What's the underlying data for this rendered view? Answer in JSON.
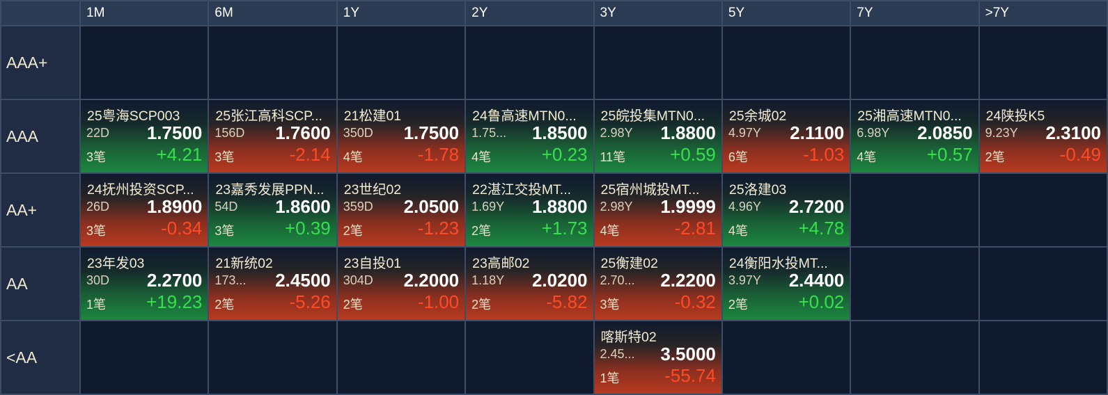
{
  "columns": [
    "1M",
    "6M",
    "1Y",
    "2Y",
    "3Y",
    "5Y",
    "7Y",
    ">7Y"
  ],
  "rows": [
    {
      "label": "AAA+",
      "cells": [
        null,
        null,
        null,
        null,
        null,
        null,
        null,
        null
      ]
    },
    {
      "label": "AAA",
      "cells": [
        {
          "name": "25粤海SCP003",
          "term": "22D",
          "yield": "1.7500",
          "trades": "3笔",
          "change": "+4.21",
          "direction": "up"
        },
        {
          "name": "25张江高科SCP...",
          "term": "156D",
          "yield": "1.7600",
          "trades": "3笔",
          "change": "-2.14",
          "direction": "down"
        },
        {
          "name": "21松建01",
          "term": "350D",
          "yield": "1.7500",
          "trades": "4笔",
          "change": "-1.78",
          "direction": "down"
        },
        {
          "name": "24鲁高速MTN0...",
          "term": "1.75...",
          "yield": "1.8500",
          "trades": "4笔",
          "change": "+0.23",
          "direction": "up"
        },
        {
          "name": "25皖投集MTN0...",
          "term": "2.98Y",
          "yield": "1.8800",
          "trades": "11笔",
          "change": "+0.59",
          "direction": "up"
        },
        {
          "name": "25余城02",
          "term": "4.97Y",
          "yield": "2.1100",
          "trades": "6笔",
          "change": "-1.03",
          "direction": "down"
        },
        {
          "name": "25湘高速MTN0...",
          "term": "6.98Y",
          "yield": "2.0850",
          "trades": "4笔",
          "change": "+0.57",
          "direction": "up"
        },
        {
          "name": "24陕投K5",
          "term": "9.23Y",
          "yield": "2.3100",
          "trades": "2笔",
          "change": "-0.49",
          "direction": "down"
        }
      ]
    },
    {
      "label": "AA+",
      "cells": [
        {
          "name": "24抚州投资SCP...",
          "term": "26D",
          "yield": "1.8900",
          "trades": "3笔",
          "change": "-0.34",
          "direction": "down"
        },
        {
          "name": "23嘉秀发展PPN...",
          "term": "54D",
          "yield": "1.8600",
          "trades": "3笔",
          "change": "+0.39",
          "direction": "up"
        },
        {
          "name": "23世纪02",
          "term": "359D",
          "yield": "2.0500",
          "trades": "2笔",
          "change": "-1.23",
          "direction": "down"
        },
        {
          "name": "22湛江交投MT...",
          "term": "1.69Y",
          "yield": "1.8800",
          "trades": "2笔",
          "change": "+1.73",
          "direction": "up"
        },
        {
          "name": "25宿州城投MT...",
          "term": "2.98Y",
          "yield": "1.9999",
          "trades": "4笔",
          "change": "-2.81",
          "direction": "down"
        },
        {
          "name": "25洛建03",
          "term": "4.96Y",
          "yield": "2.7200",
          "trades": "4笔",
          "change": "+4.78",
          "direction": "up"
        },
        null,
        null
      ]
    },
    {
      "label": "AA",
      "cells": [
        {
          "name": "23年发03",
          "term": "30D",
          "yield": "2.2700",
          "trades": "1笔",
          "change": "+19.23",
          "direction": "up"
        },
        {
          "name": "21新统02",
          "term": "173...",
          "yield": "2.4500",
          "trades": "2笔",
          "change": "-5.26",
          "direction": "down"
        },
        {
          "name": "23自投01",
          "term": "304D",
          "yield": "2.2000",
          "trades": "2笔",
          "change": "-1.00",
          "direction": "down"
        },
        {
          "name": "23高邮02",
          "term": "1.18Y",
          "yield": "2.0200",
          "trades": "2笔",
          "change": "-5.82",
          "direction": "down"
        },
        {
          "name": "25衡建02",
          "term": "2.70...",
          "yield": "2.2200",
          "trades": "3笔",
          "change": "-0.32",
          "direction": "down"
        },
        {
          "name": "24衡阳水投MT...",
          "term": "3.97Y",
          "yield": "2.4400",
          "trades": "2笔",
          "change": "+0.02",
          "direction": "up"
        },
        null,
        null
      ]
    },
    {
      "label": "<AA",
      "cells": [
        null,
        null,
        null,
        null,
        {
          "name": "喀斯特02",
          "term": "2.45...",
          "yield": "3.5000",
          "trades": "1笔",
          "change": "-55.74",
          "direction": "down"
        },
        null,
        null,
        null
      ]
    }
  ],
  "colors": {
    "up": "#36e04c",
    "down": "#ff4a26",
    "background": "#0e1a2d",
    "header": "#2c3b54",
    "grid_line": "#3d4d66"
  }
}
